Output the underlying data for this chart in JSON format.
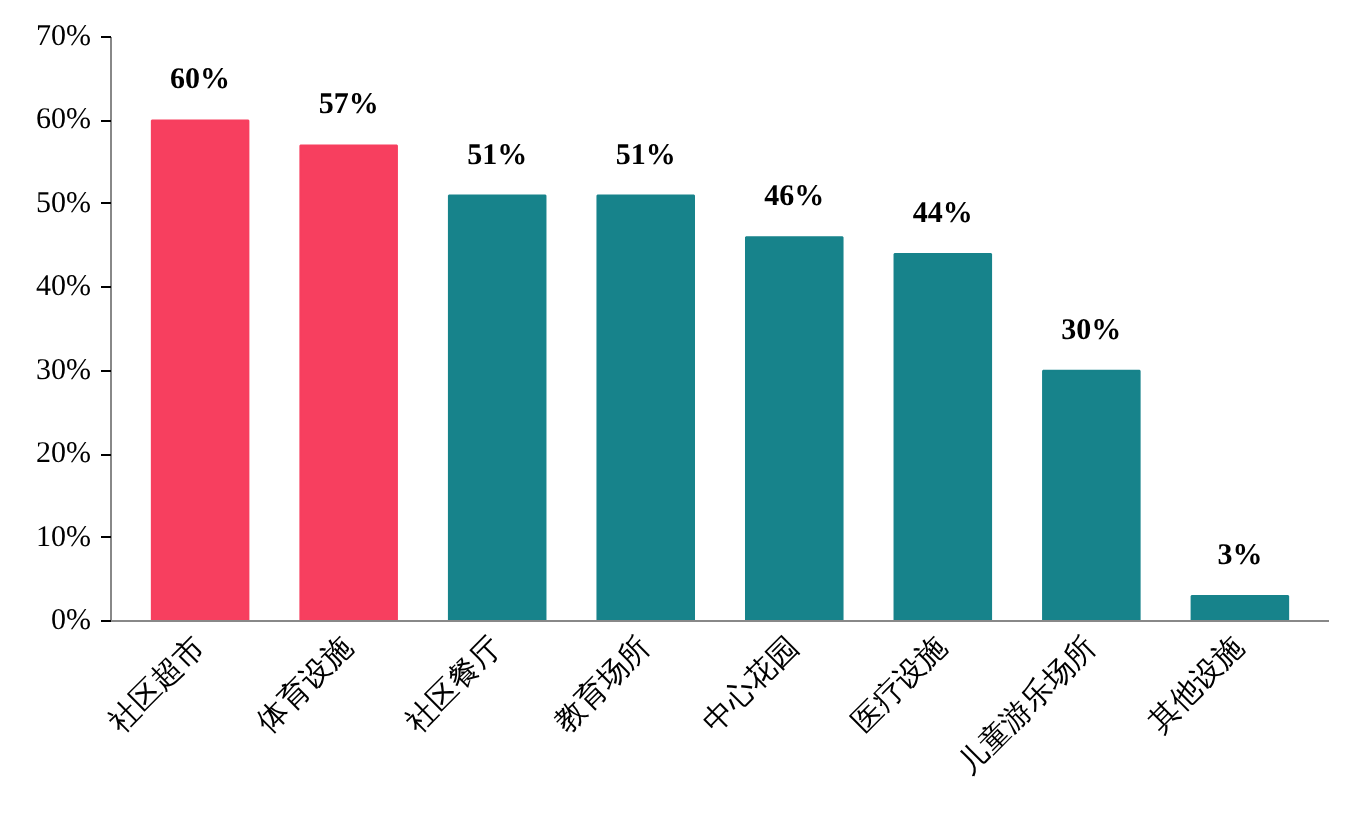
{
  "chart_data": {
    "type": "bar",
    "categories": [
      "社区超市",
      "体育设施",
      "社区餐厅",
      "教育场所",
      "中心花园",
      "医疗设施",
      "儿童游乐场所",
      "其他设施"
    ],
    "values": [
      60,
      57,
      51,
      51,
      46,
      44,
      30,
      3
    ],
    "colors": [
      "#f73f5f",
      "#f73f5f",
      "#17838b",
      "#17838b",
      "#17838b",
      "#17838b",
      "#17838b",
      "#17838b"
    ],
    "ylim": [
      0,
      70
    ],
    "yticks": [
      {
        "value": 0,
        "label": "0%"
      },
      {
        "value": 10,
        "label": "10%"
      },
      {
        "value": 20,
        "label": "20%"
      },
      {
        "value": 30,
        "label": "30%"
      },
      {
        "value": 40,
        "label": "40%"
      },
      {
        "value": 50,
        "label": "50%"
      },
      {
        "value": 60,
        "label": "60%"
      },
      {
        "value": 70,
        "label": "70%"
      }
    ],
    "value_labels": [
      "60%",
      "57%",
      "51%",
      "51%",
      "46%",
      "44%",
      "30%",
      "3%"
    ],
    "grid": false
  }
}
